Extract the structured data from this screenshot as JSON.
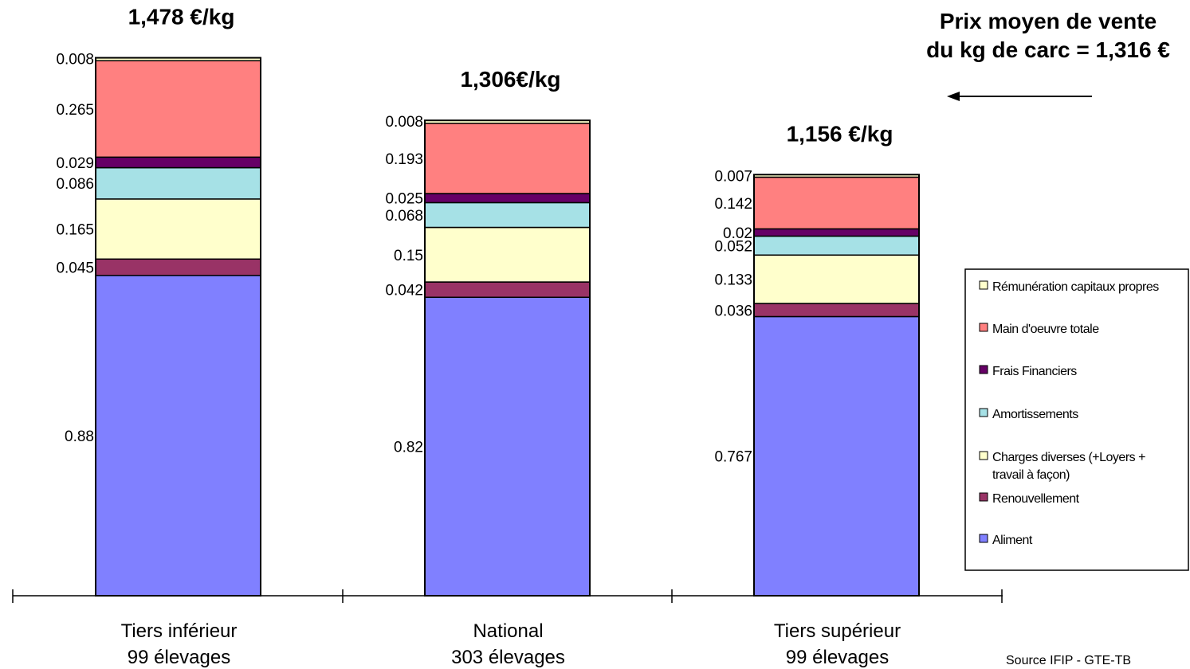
{
  "chart_data": {
    "type": "bar",
    "stacked": true,
    "categories": [
      [
        "Tiers inférieur",
        "99 élevages"
      ],
      [
        "National",
        "303 élevages"
      ],
      [
        "Tiers supérieur",
        "99 élevages"
      ]
    ],
    "totals": [
      "1,478 €/kg",
      "1,306€/kg",
      "1,156 €/kg"
    ],
    "series": [
      {
        "name": "Aliment",
        "color": "#8080ff",
        "values": [
          0.88,
          0.82,
          0.767
        ]
      },
      {
        "name": "Renouvellement",
        "color": "#993366",
        "values": [
          0.045,
          0.042,
          0.036
        ]
      },
      {
        "name": "Charges diverses (+Loyers + travail à façon)",
        "color": "#ffffcc",
        "values": [
          0.165,
          0.15,
          0.133
        ]
      },
      {
        "name": "Amortissements",
        "color": "#a6e1e6",
        "values": [
          0.086,
          0.068,
          0.052
        ]
      },
      {
        "name": "Frais Financiers",
        "color": "#660066",
        "values": [
          0.029,
          0.025,
          0.02
        ]
      },
      {
        "name": "Main d'oeuvre totale",
        "color": "#ff8080",
        "values": [
          0.265,
          0.193,
          0.142
        ]
      },
      {
        "name": "Rémunération capitaux propres",
        "color": "#ffffcc",
        "values": [
          0.008,
          0.008,
          0.007
        ]
      }
    ],
    "value_labels": [
      [
        "0.88",
        "0.82",
        "0.767"
      ],
      [
        "0.045",
        "0.042",
        "0.036"
      ],
      [
        "0.165",
        "0.15",
        "0.133"
      ],
      [
        "0.086",
        "0.068",
        "0.052"
      ],
      [
        "0.029",
        "0.025",
        "0.02"
      ],
      [
        "0.265",
        "0.193",
        "0.142"
      ],
      [
        "0.008",
        "0.008",
        "0.007"
      ]
    ],
    "legend_order": [
      6,
      5,
      4,
      3,
      2,
      1,
      0
    ],
    "legend_placement": "right",
    "ylim": [
      0,
      1.48
    ],
    "title": "",
    "xlabel": "",
    "ylabel": ""
  },
  "annotation": {
    "line1": "Prix moyen de vente",
    "line2": "du kg de carc = 1,316 €"
  },
  "source": "Source IFIP - GTE-TB"
}
